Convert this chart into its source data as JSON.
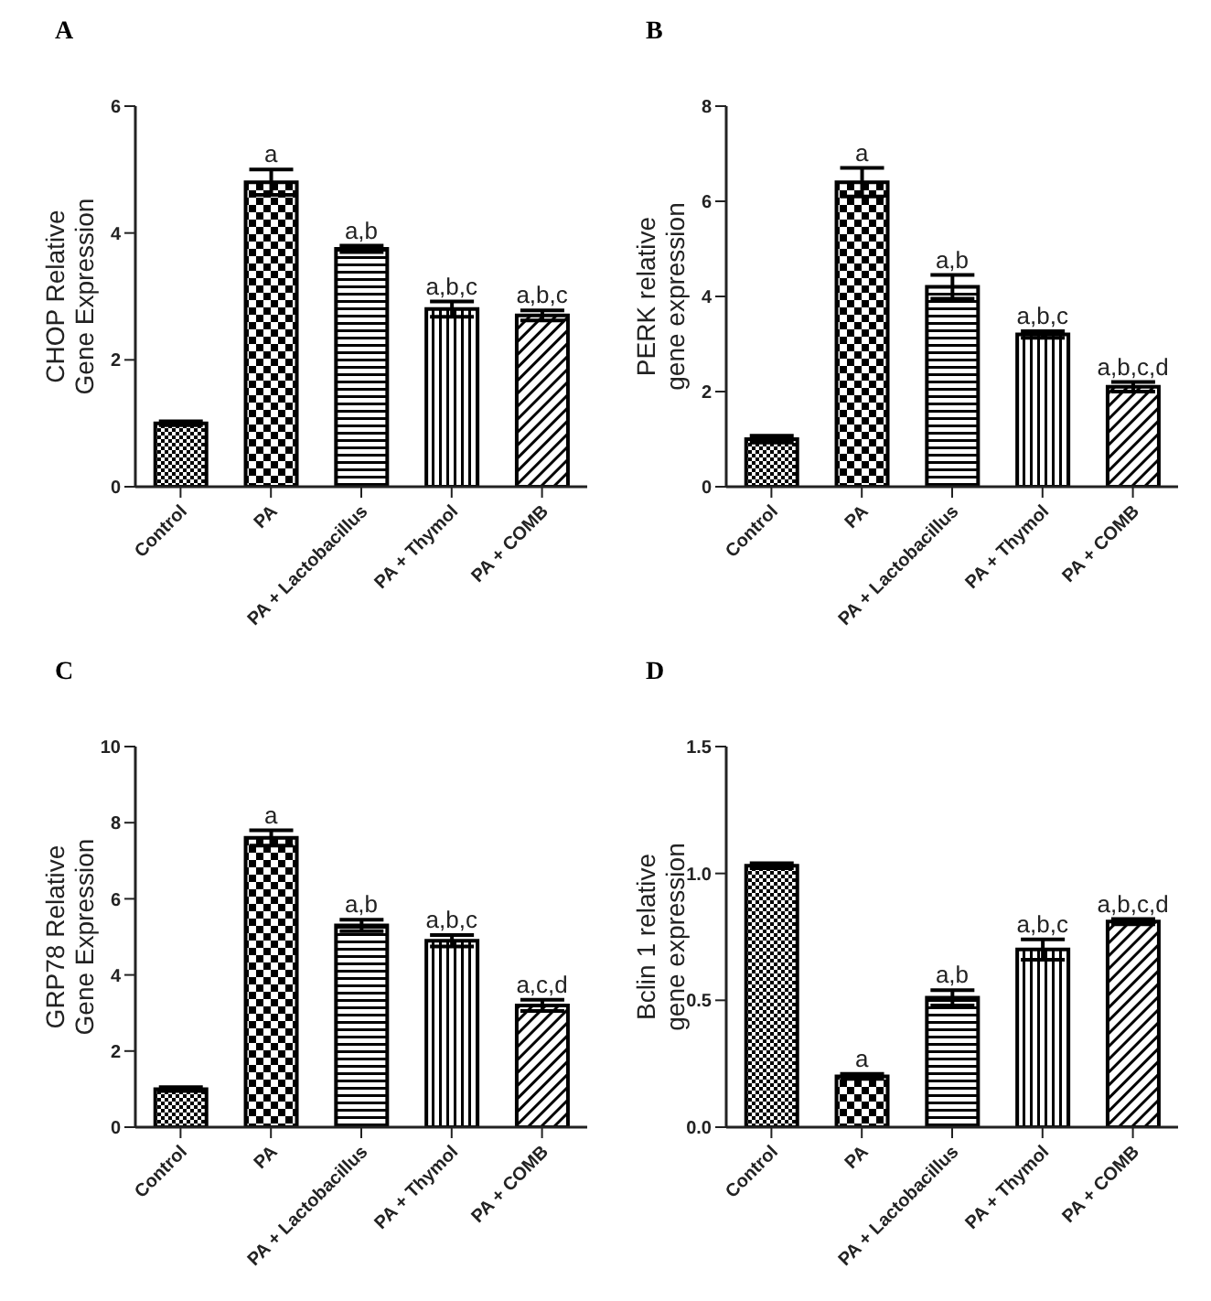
{
  "chart_data": [
    {
      "type": "bar",
      "title": "A",
      "ylabel": "CHOP Relative\nGene Expression",
      "categories": [
        "Control",
        "PA",
        "PA + Lactobacillus",
        "PA + Thymol",
        "PA + COMB"
      ],
      "values": [
        1.0,
        4.8,
        3.75,
        2.8,
        2.7
      ],
      "errors": [
        0.03,
        0.2,
        0.05,
        0.12,
        0.08
      ],
      "colors": [
        "#000000",
        "#000000",
        "#000000",
        "#000000",
        "#000000"
      ],
      "ylim": [
        0,
        6
      ],
      "yticks": [
        0,
        2,
        4,
        6
      ],
      "grid": false,
      "legend": false,
      "annotations": [
        {
          "text": "a",
          "x": "PA",
          "y": 5.0
        },
        {
          "text": "a,b",
          "x": "PA + Lactobacillus",
          "y": 3.8
        },
        {
          "text": "a,b,c",
          "x": "PA + Thymol",
          "y": 2.92
        },
        {
          "text": "a,b,c",
          "x": "PA + COMB",
          "y": 2.78
        }
      ]
    },
    {
      "type": "bar",
      "title": "B",
      "ylabel": "PERK relative\ngene expression",
      "categories": [
        "Control",
        "PA",
        "PA + Lactobacillus",
        "PA + Thymol",
        "PA + COMB"
      ],
      "values": [
        1.0,
        6.4,
        4.2,
        3.2,
        2.1
      ],
      "errors": [
        0.07,
        0.3,
        0.25,
        0.07,
        0.1
      ],
      "colors": [
        "#000000",
        "#000000",
        "#000000",
        "#000000",
        "#000000"
      ],
      "ylim": [
        0,
        8
      ],
      "yticks": [
        0,
        2,
        4,
        6,
        8
      ],
      "grid": false,
      "legend": false,
      "annotations": [
        {
          "text": "a",
          "x": "PA",
          "y": 6.7
        },
        {
          "text": "a,b",
          "x": "PA + Lactobacillus",
          "y": 4.45
        },
        {
          "text": "a,b,c",
          "x": "PA + Thymol",
          "y": 3.27
        },
        {
          "text": "a,b,c,d",
          "x": "PA + COMB",
          "y": 2.2
        }
      ]
    },
    {
      "type": "bar",
      "title": "C",
      "ylabel": "GRP78 Relative\nGene Expression",
      "categories": [
        "Control",
        "PA",
        "PA + Lactobacillus",
        "PA + Thymol",
        "PA + COMB"
      ],
      "values": [
        1.0,
        7.6,
        5.3,
        4.9,
        3.2
      ],
      "errors": [
        0.05,
        0.2,
        0.15,
        0.15,
        0.15
      ],
      "colors": [
        "#000000",
        "#000000",
        "#000000",
        "#000000",
        "#000000"
      ],
      "ylim": [
        0,
        10
      ],
      "yticks": [
        0,
        2,
        4,
        6,
        8,
        10
      ],
      "grid": false,
      "legend": false,
      "annotations": [
        {
          "text": "a",
          "x": "PA",
          "y": 7.8
        },
        {
          "text": "a,b",
          "x": "PA + Lactobacillus",
          "y": 5.45
        },
        {
          "text": "a,b,c",
          "x": "PA + Thymol",
          "y": 5.05
        },
        {
          "text": "a,c,d",
          "x": "PA + COMB",
          "y": 3.35
        }
      ]
    },
    {
      "type": "bar",
      "title": "D",
      "ylabel": "Bclin 1 relative\ngene expression",
      "categories": [
        "Control",
        "PA",
        "PA + Lactobacillus",
        "PA + Thymol",
        "PA + COMB"
      ],
      "values": [
        1.03,
        0.2,
        0.51,
        0.7,
        0.81
      ],
      "errors": [
        0.01,
        0.01,
        0.03,
        0.04,
        0.01
      ],
      "colors": [
        "#000000",
        "#000000",
        "#000000",
        "#000000",
        "#000000"
      ],
      "ylim": [
        0,
        1.5
      ],
      "yticks": [
        {
          "value": 0,
          "label": "0.0"
        },
        {
          "value": 0.5,
          "label": "0.5"
        },
        {
          "value": 1,
          "label": "1.0"
        },
        {
          "value": 1.5,
          "label": "1.5"
        }
      ],
      "grid": false,
      "legend": false,
      "annotations": [
        {
          "text": "a",
          "x": "PA",
          "y": 0.21
        },
        {
          "text": "a,b",
          "x": "PA + Lactobacillus",
          "y": 0.54
        },
        {
          "text": "a,b,c",
          "x": "PA + Thymol",
          "y": 0.74
        },
        {
          "text": "a,b,c,d",
          "x": "PA + COMB",
          "y": 0.82
        }
      ]
    }
  ]
}
